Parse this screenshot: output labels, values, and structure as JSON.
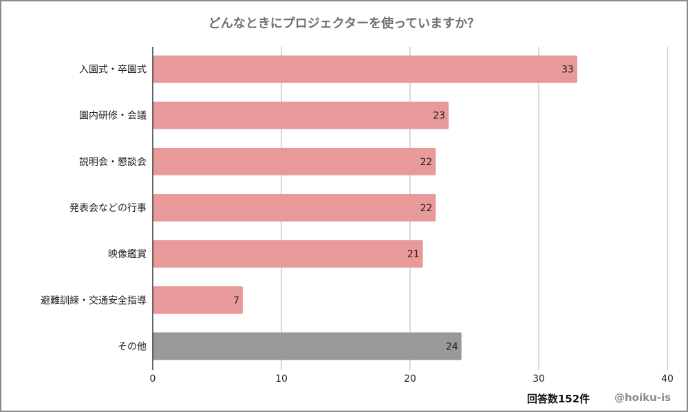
{
  "chart_data": {
    "type": "bar",
    "orientation": "horizontal",
    "title": "どんなときにプロジェクターを使っていますか？",
    "categories": [
      "入園式・卒園式",
      "園内研修・会議",
      "説明会・懇談会",
      "発表会などの行事",
      "映像鑑賞",
      "避難訓練・交通安全指導",
      "その他"
    ],
    "values": [
      33,
      23,
      22,
      22,
      21,
      7,
      24
    ],
    "colors": [
      "#e89a9a",
      "#e89a9a",
      "#e89a9a",
      "#e89a9a",
      "#e89a9a",
      "#e89a9a",
      "#999999"
    ],
    "xlim": [
      0,
      40
    ],
    "xticks": [
      0,
      10,
      20,
      30,
      40
    ],
    "grid": true,
    "xlabel": "",
    "ylabel": ""
  },
  "footer": {
    "count": "回答数152件",
    "handle": "@hoiku-is"
  }
}
